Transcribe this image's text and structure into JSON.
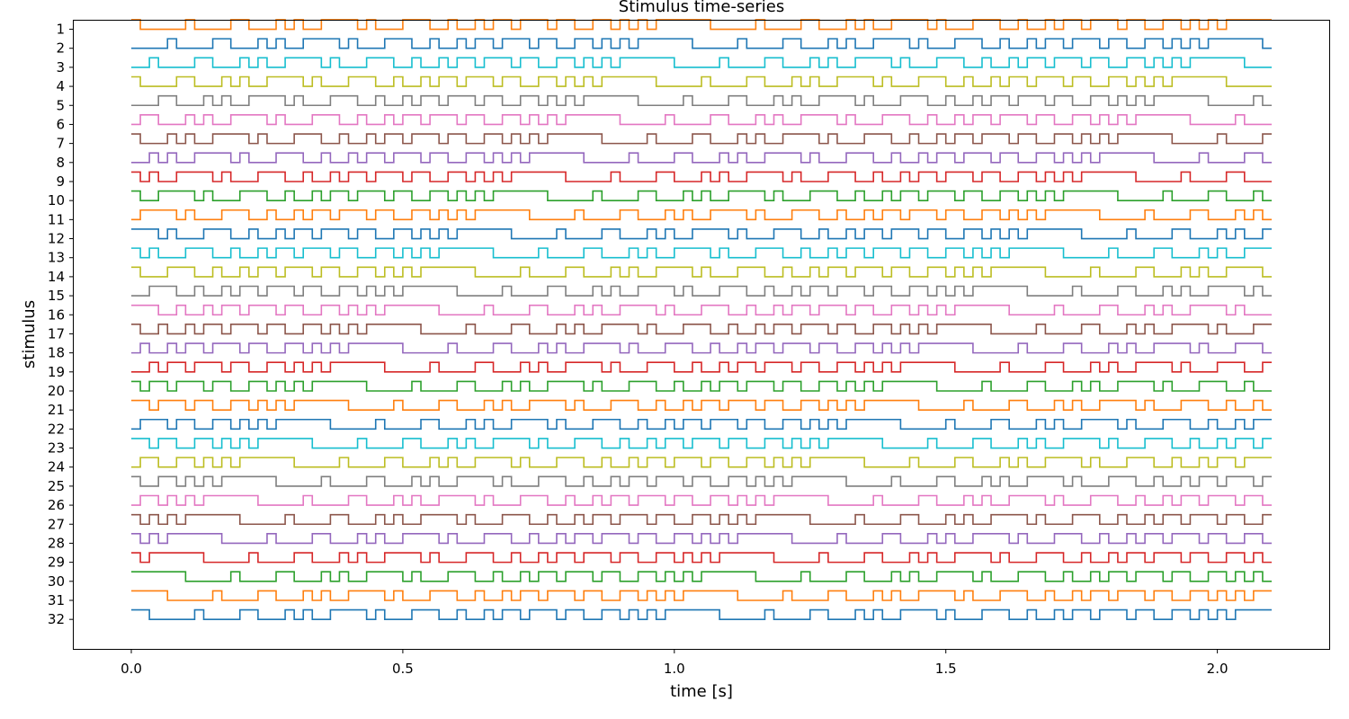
{
  "chart_data": {
    "type": "line",
    "style": "stepped binary traces stacked by stimulus index (m-sequence shifts)",
    "title": "Stimulus time-series",
    "xlabel": "time [s]",
    "ylabel": "stimulus",
    "xlim": [
      -0.106,
      2.206
    ],
    "ylim": [
      0.55,
      33.55
    ],
    "x_ticks": [
      0.0,
      0.5,
      1.0,
      1.5,
      2.0
    ],
    "x_tick_labels": [
      "0.0",
      "0.5",
      "1.0",
      "1.5",
      "2.0"
    ],
    "y_tick_labels": [
      "1",
      "2",
      "3",
      "4",
      "5",
      "6",
      "7",
      "8",
      "9",
      "10",
      "11",
      "12",
      "13",
      "14",
      "15",
      "16",
      "17",
      "18",
      "19",
      "20",
      "21",
      "22",
      "23",
      "24",
      "25",
      "26",
      "27",
      "28",
      "29",
      "30",
      "31",
      "32"
    ],
    "y_inverted": true,
    "grid": false,
    "legend": "none",
    "trace_height": 0.5,
    "sample_period_s": 0.016666667,
    "duration_s": 2.1,
    "series": [
      {
        "id": 1,
        "shift": 0,
        "color": "#ff7f0e"
      },
      {
        "id": 2,
        "shift": 2,
        "color": "#1f77b4"
      },
      {
        "id": 3,
        "shift": 4,
        "color": "#17becf"
      },
      {
        "id": 4,
        "shift": 6,
        "color": "#bcbd22"
      },
      {
        "id": 5,
        "shift": 8,
        "color": "#7f7f7f"
      },
      {
        "id": 6,
        "shift": 10,
        "color": "#e377c2"
      },
      {
        "id": 7,
        "shift": 12,
        "color": "#8c564b"
      },
      {
        "id": 8,
        "shift": 14,
        "color": "#9467bd"
      },
      {
        "id": 9,
        "shift": 16,
        "color": "#d62728"
      },
      {
        "id": 10,
        "shift": 18,
        "color": "#2ca02c"
      },
      {
        "id": 11,
        "shift": 20,
        "color": "#ff7f0e"
      },
      {
        "id": 12,
        "shift": 22,
        "color": "#1f77b4"
      },
      {
        "id": 13,
        "shift": 24,
        "color": "#17becf"
      },
      {
        "id": 14,
        "shift": 26,
        "color": "#bcbd22"
      },
      {
        "id": 15,
        "shift": 28,
        "color": "#7f7f7f"
      },
      {
        "id": 16,
        "shift": 30,
        "color": "#e377c2"
      },
      {
        "id": 17,
        "shift": 32,
        "color": "#8c564b"
      },
      {
        "id": 18,
        "shift": 34,
        "color": "#9467bd"
      },
      {
        "id": 19,
        "shift": 36,
        "color": "#d62728"
      },
      {
        "id": 20,
        "shift": 38,
        "color": "#2ca02c"
      },
      {
        "id": 21,
        "shift": 40,
        "color": "#ff7f0e"
      },
      {
        "id": 22,
        "shift": 42,
        "color": "#1f77b4"
      },
      {
        "id": 23,
        "shift": 44,
        "color": "#17becf"
      },
      {
        "id": 24,
        "shift": 46,
        "color": "#bcbd22"
      },
      {
        "id": 25,
        "shift": 48,
        "color": "#7f7f7f"
      },
      {
        "id": 26,
        "shift": 50,
        "color": "#e377c2"
      },
      {
        "id": 27,
        "shift": 52,
        "color": "#8c564b"
      },
      {
        "id": 28,
        "shift": 54,
        "color": "#9467bd"
      },
      {
        "id": 29,
        "shift": 56,
        "color": "#d62728"
      },
      {
        "id": 30,
        "shift": 58,
        "color": "#2ca02c"
      },
      {
        "id": 31,
        "shift": 60,
        "color": "#ff7f0e"
      },
      {
        "id": 32,
        "shift": 62,
        "color": "#1f77b4"
      }
    ]
  }
}
